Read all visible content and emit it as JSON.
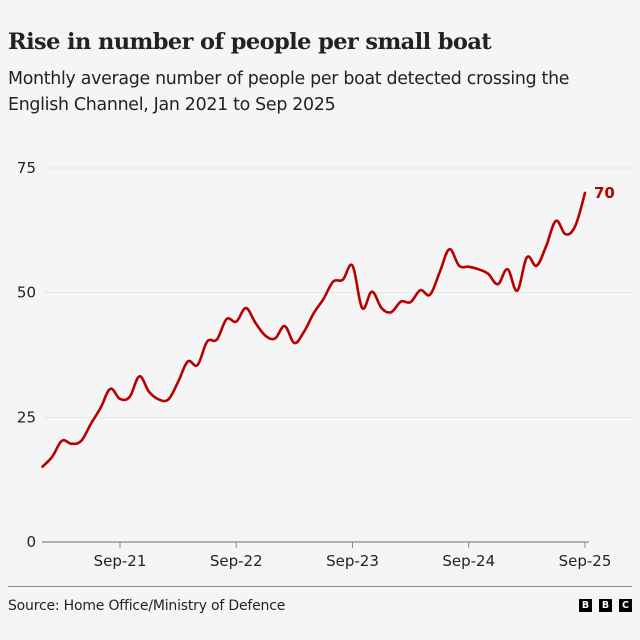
{
  "header": {
    "title": "Rise in number of people per small boat",
    "subtitle": "Monthly average number of people per boat detected crossing the English Channel, Jan 2021 to Sep 2025"
  },
  "footer": {
    "source": "Source: Home Office/Ministry of Defence",
    "logo_letters": [
      "B",
      "B",
      "C"
    ]
  },
  "colors": {
    "line": "#b80000",
    "grid": "#e6e6e6",
    "axis": "#8a8a8a",
    "background": "#f5f5f5"
  },
  "chart_data": {
    "type": "line",
    "title": "Rise in number of people per small boat",
    "subtitle": "Monthly average number of people per boat detected crossing the English Channel, Jan 2021 to Sep 2025",
    "xlabel": "",
    "ylabel": "",
    "ylim": [
      0,
      75
    ],
    "yticks": [
      0,
      25,
      50,
      75
    ],
    "grid": true,
    "x_start": "Jan-21",
    "x_end": "Sep-25",
    "xticks": [
      {
        "label": "Sep-21",
        "month_index": 8
      },
      {
        "label": "Sep-22",
        "month_index": 20
      },
      {
        "label": "Sep-23",
        "month_index": 32
      },
      {
        "label": "Sep-24",
        "month_index": 44
      },
      {
        "label": "Sep-25",
        "month_index": 56
      }
    ],
    "end_label": "70",
    "series": [
      {
        "name": "People per boat",
        "values": [
          15.1,
          17.1,
          20.3,
          19.7,
          20.3,
          23.7,
          26.9,
          30.7,
          28.7,
          29.1,
          33.2,
          30.1,
          28.6,
          28.6,
          32.1,
          36.2,
          35.5,
          40.2,
          40.6,
          44.7,
          44.2,
          46.9,
          43.9,
          41.4,
          40.8,
          43.3,
          39.9,
          42.2,
          45.9,
          48.7,
          52.2,
          52.6,
          55.4,
          46.9,
          50.2,
          46.9,
          46.1,
          48.2,
          48.1,
          50.5,
          49.6,
          54.1,
          58.7,
          55.4,
          55.2,
          54.7,
          53.8,
          51.7,
          54.7,
          50.4,
          57.1,
          55.4,
          59.4,
          64.4,
          61.7,
          63.4,
          70.0
        ]
      }
    ]
  }
}
